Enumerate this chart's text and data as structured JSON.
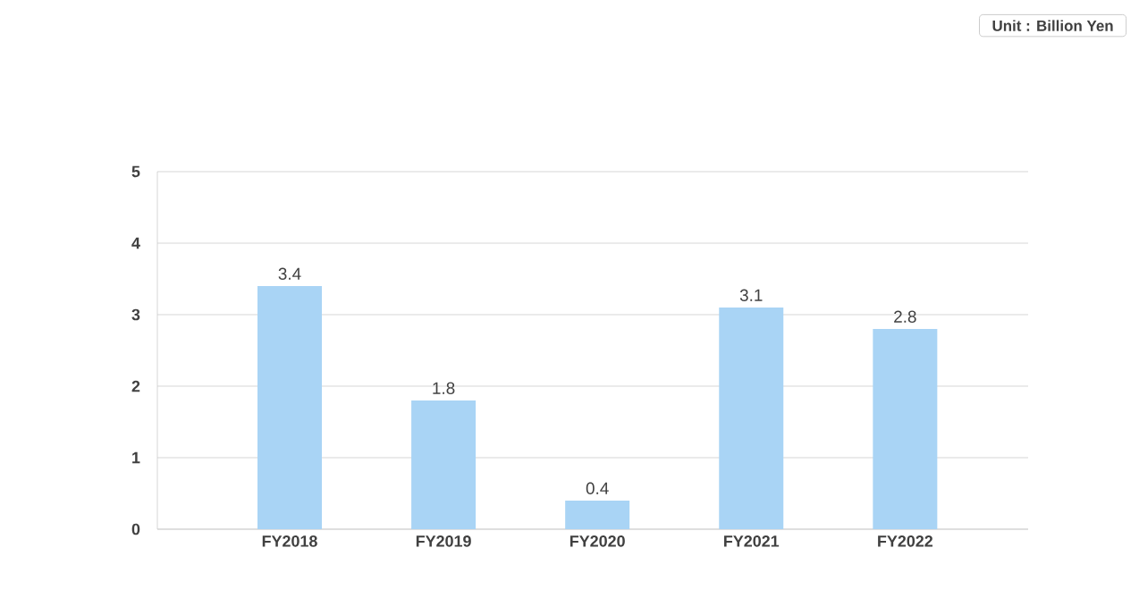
{
  "chart_data": {
    "type": "bar",
    "categories": [
      "FY2018",
      "FY2019",
      "FY2020",
      "FY2021",
      "FY2022"
    ],
    "values": [
      3.4,
      1.8,
      0.4,
      3.1,
      2.8
    ],
    "color": "#a9d4f5",
    "ylim": [
      0,
      5
    ],
    "yticks": [
      0,
      1,
      2,
      3,
      4,
      5
    ],
    "grid": "y",
    "data_labels": true,
    "annotations": [
      "Unit : Billion Yen"
    ]
  }
}
